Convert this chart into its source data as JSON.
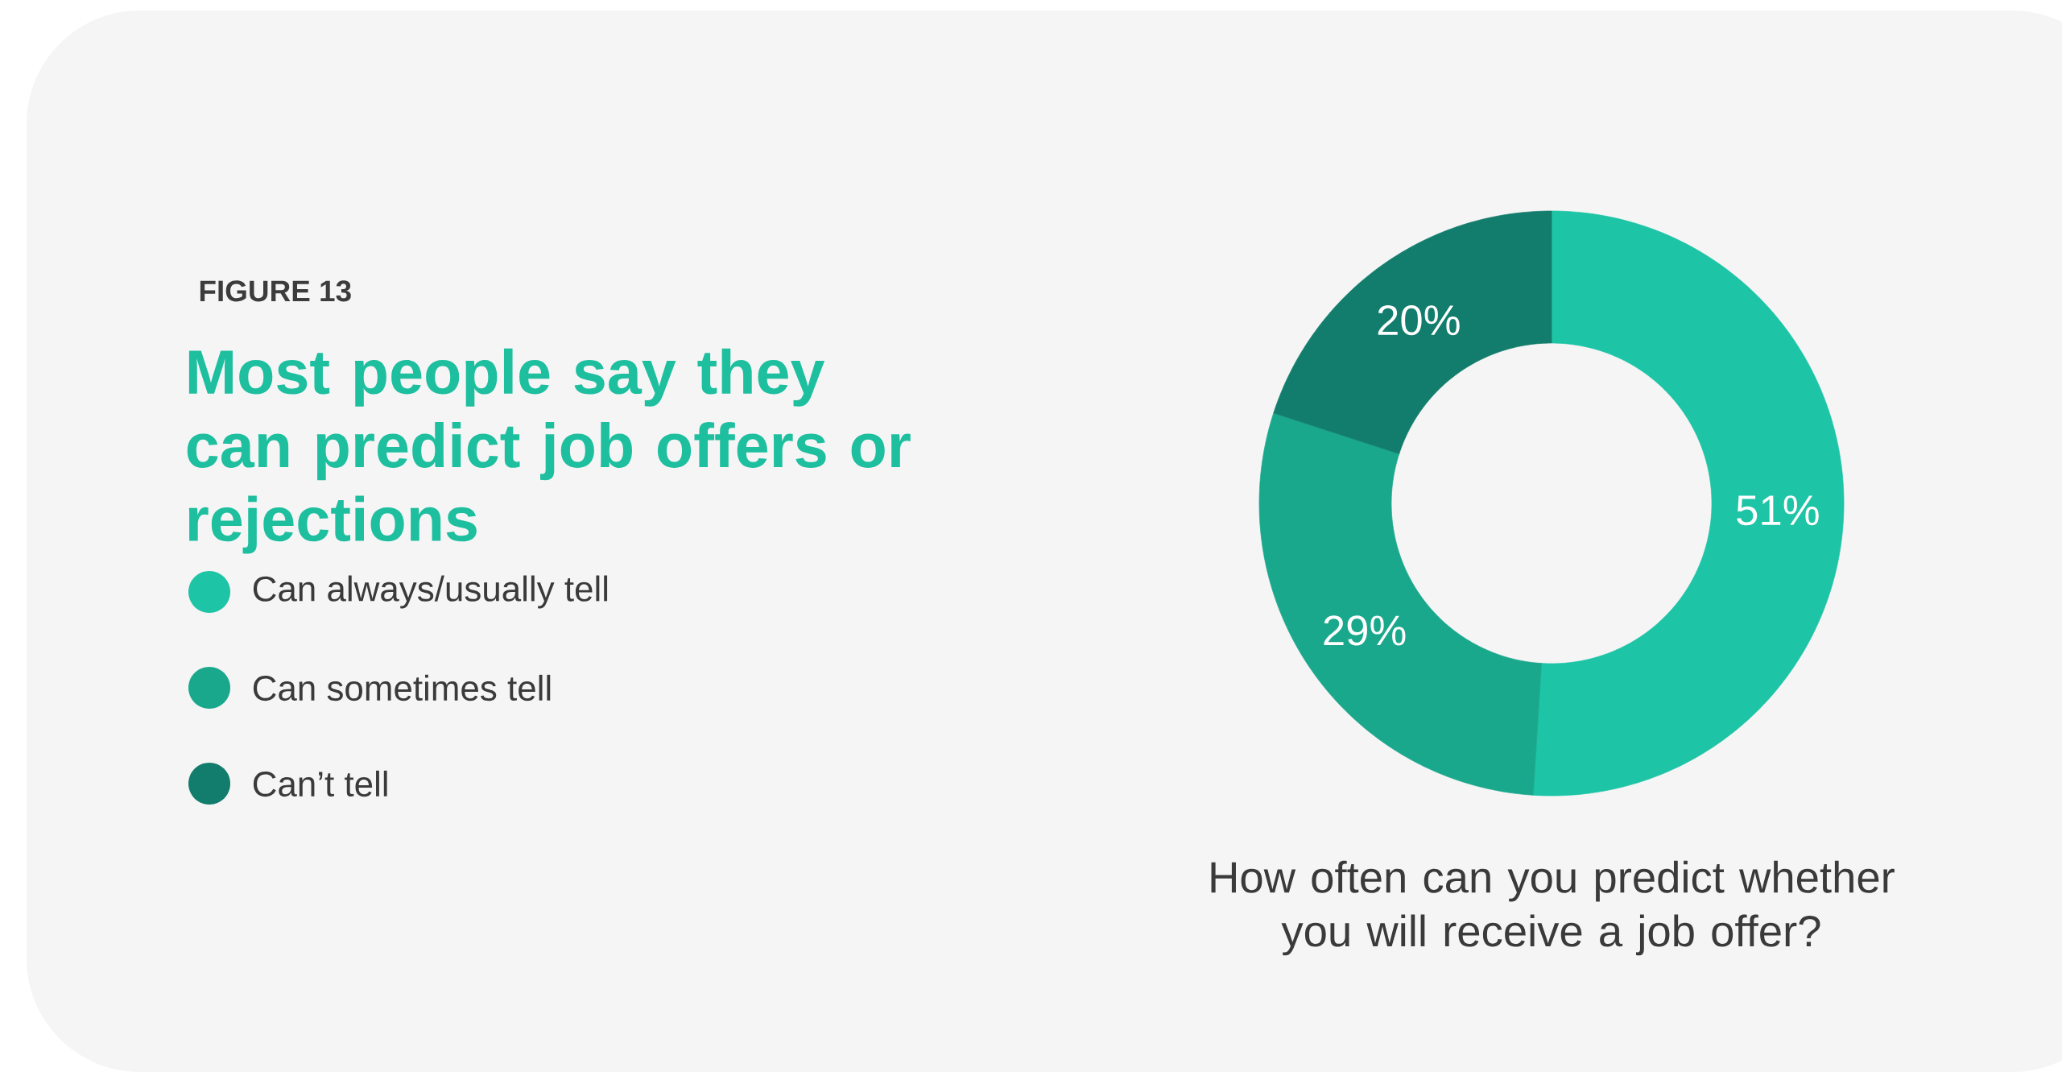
{
  "chart_data": {
    "type": "donut",
    "title": "Most people say they can predict job offers or rejections",
    "categories": [
      "Can always/usually tell",
      "Can sometimes tell",
      "Can’t tell"
    ],
    "values": [
      51,
      29,
      20
    ],
    "colors": [
      "#1dc4a6",
      "#1aa88c",
      "#127d6c"
    ],
    "value_labels": [
      "51%",
      "29%",
      "20%"
    ],
    "legend": "left",
    "annotations": [
      "FIGURE 13",
      "How often can you predict whether you will receive a job offer?"
    ]
  }
}
